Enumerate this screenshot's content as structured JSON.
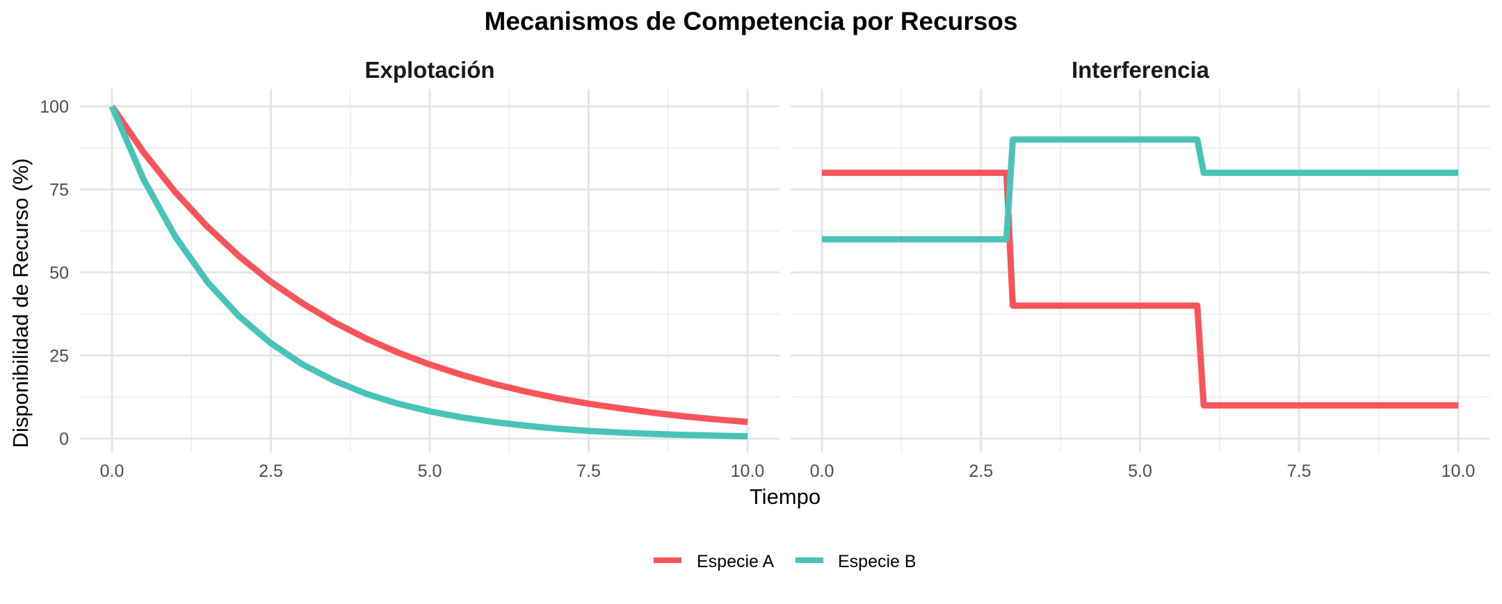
{
  "title": "Mecanismos de Competencia por Recursos",
  "xlabel": "Tiempo",
  "ylabel": "Disponibilidad de Recurso (%)",
  "legend": {
    "position": "bottom",
    "items": [
      {
        "label": "Especie A",
        "color": "#F8545A"
      },
      {
        "label": "Especie B",
        "color": "#47C3B8"
      }
    ]
  },
  "colors": {
    "especie_a": "#F8545A",
    "especie_b": "#47C3B8",
    "grid": "#E5E5E5",
    "text": "#4D4D4D"
  },
  "chart_data": [
    {
      "type": "line",
      "title": "Explotación",
      "xlim": [
        0,
        10
      ],
      "ylim": [
        0,
        100
      ],
      "xticks": [
        "0.0",
        "2.5",
        "5.0",
        "7.5",
        "10.0"
      ],
      "yticks": [
        "0",
        "25",
        "50",
        "75",
        "100"
      ],
      "grid": true,
      "series": [
        {
          "name": "Especie A",
          "x": [
            0,
            0.5,
            1,
            1.5,
            2,
            2.5,
            3,
            3.5,
            4,
            4.5,
            5,
            5.5,
            6,
            6.5,
            7,
            7.5,
            8,
            8.5,
            9,
            9.5,
            10
          ],
          "y": [
            100,
            86.1,
            74.1,
            63.8,
            54.9,
            47.2,
            40.7,
            35.0,
            30.1,
            25.9,
            22.3,
            19.2,
            16.5,
            14.2,
            12.2,
            10.5,
            9.1,
            7.8,
            6.7,
            5.8,
            5.0
          ]
        },
        {
          "name": "Especie B",
          "x": [
            0,
            0.5,
            1,
            1.5,
            2,
            2.5,
            3,
            3.5,
            4,
            4.5,
            5,
            5.5,
            6,
            6.5,
            7,
            7.5,
            8,
            8.5,
            9,
            9.5,
            10
          ],
          "y": [
            100,
            77.9,
            60.7,
            47.2,
            36.8,
            28.7,
            22.3,
            17.4,
            13.5,
            10.5,
            8.2,
            6.4,
            5.0,
            3.9,
            3.0,
            2.3,
            1.8,
            1.4,
            1.1,
            0.9,
            0.7
          ]
        }
      ]
    },
    {
      "type": "line",
      "title": "Interferencia",
      "xlim": [
        0,
        10
      ],
      "ylim": [
        0,
        100
      ],
      "xticks": [
        "0.0",
        "2.5",
        "5.0",
        "7.5",
        "10.0"
      ],
      "yticks": [
        "0",
        "25",
        "50",
        "75",
        "100"
      ],
      "grid": true,
      "series": [
        {
          "name": "Especie A",
          "x": [
            0,
            2.9,
            3.0,
            5.9,
            6.0,
            10
          ],
          "y": [
            80,
            80,
            40,
            40,
            10,
            10
          ]
        },
        {
          "name": "Especie B",
          "x": [
            0,
            2.9,
            3.0,
            5.9,
            6.0,
            10
          ],
          "y": [
            60,
            60,
            90,
            90,
            80,
            80
          ]
        }
      ]
    }
  ]
}
